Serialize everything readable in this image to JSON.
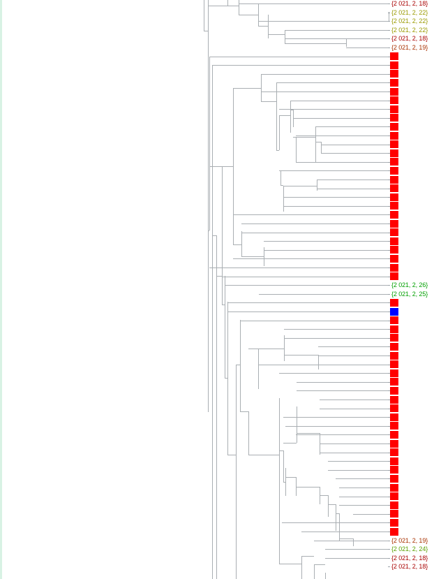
{
  "colors": {
    "line": "#a9aeb2",
    "box_red": "#ff0000",
    "box_blue": "#0000ff",
    "date_dark_red": "#a80000",
    "date_olive": "#9a9a00",
    "date_green": "#00a000",
    "date_olive_green": "#5aa000",
    "left_strip": "#d8f2e4"
  },
  "leaves": [
    {
      "kind": "label",
      "text": "{2 021, 2, 18}",
      "color": "#a80000"
    },
    {
      "kind": "label",
      "text": "{2 021, 2, 22}",
      "color": "#9a9a00"
    },
    {
      "kind": "label",
      "text": "{2 021, 2, 22}",
      "color": "#9a9a00"
    },
    {
      "kind": "label",
      "text": "{2 021, 2, 22}",
      "color": "#9a9a00"
    },
    {
      "kind": "label",
      "text": "{2 021, 2, 18}",
      "color": "#a80000"
    },
    {
      "kind": "label",
      "text": "{2 021, 2, 19}",
      "color": "#a83000"
    },
    {
      "kind": "box",
      "color": "#ff0000"
    },
    {
      "kind": "box",
      "color": "#ff0000"
    },
    {
      "kind": "box",
      "color": "#ff0000"
    },
    {
      "kind": "box",
      "color": "#ff0000"
    },
    {
      "kind": "box",
      "color": "#ff0000"
    },
    {
      "kind": "box",
      "color": "#ff0000"
    },
    {
      "kind": "box",
      "color": "#ff0000"
    },
    {
      "kind": "box",
      "color": "#ff0000"
    },
    {
      "kind": "box",
      "color": "#ff0000"
    },
    {
      "kind": "box",
      "color": "#ff0000"
    },
    {
      "kind": "box",
      "color": "#ff0000"
    },
    {
      "kind": "box",
      "color": "#ff0000"
    },
    {
      "kind": "box",
      "color": "#ff0000"
    },
    {
      "kind": "box",
      "color": "#ff0000"
    },
    {
      "kind": "box",
      "color": "#ff0000"
    },
    {
      "kind": "box",
      "color": "#ff0000"
    },
    {
      "kind": "box",
      "color": "#ff0000"
    },
    {
      "kind": "box",
      "color": "#ff0000"
    },
    {
      "kind": "box",
      "color": "#ff0000"
    },
    {
      "kind": "box",
      "color": "#ff0000"
    },
    {
      "kind": "box",
      "color": "#ff0000"
    },
    {
      "kind": "box",
      "color": "#ff0000"
    },
    {
      "kind": "box",
      "color": "#ff0000"
    },
    {
      "kind": "box",
      "color": "#ff0000"
    },
    {
      "kind": "box",
      "color": "#ff0000"
    },
    {
      "kind": "box",
      "color": "#ff0000"
    },
    {
      "kind": "label",
      "text": "{2 021, 2, 26}",
      "color": "#00a000"
    },
    {
      "kind": "label",
      "text": "{2 021, 2, 25}",
      "color": "#00a000"
    },
    {
      "kind": "box",
      "color": "#ff0000"
    },
    {
      "kind": "box",
      "color": "#0000ff"
    },
    {
      "kind": "box",
      "color": "#ff0000"
    },
    {
      "kind": "box",
      "color": "#ff0000"
    },
    {
      "kind": "box",
      "color": "#ff0000"
    },
    {
      "kind": "box",
      "color": "#ff0000"
    },
    {
      "kind": "box",
      "color": "#ff0000"
    },
    {
      "kind": "box",
      "color": "#ff0000"
    },
    {
      "kind": "box",
      "color": "#ff0000"
    },
    {
      "kind": "box",
      "color": "#ff0000"
    },
    {
      "kind": "box",
      "color": "#ff0000"
    },
    {
      "kind": "box",
      "color": "#ff0000"
    },
    {
      "kind": "box",
      "color": "#ff0000"
    },
    {
      "kind": "box",
      "color": "#ff0000"
    },
    {
      "kind": "box",
      "color": "#ff0000"
    },
    {
      "kind": "box",
      "color": "#ff0000"
    },
    {
      "kind": "box",
      "color": "#ff0000"
    },
    {
      "kind": "box",
      "color": "#ff0000"
    },
    {
      "kind": "box",
      "color": "#ff0000"
    },
    {
      "kind": "box",
      "color": "#ff0000"
    },
    {
      "kind": "box",
      "color": "#ff0000"
    },
    {
      "kind": "box",
      "color": "#ff0000"
    },
    {
      "kind": "box",
      "color": "#ff0000"
    },
    {
      "kind": "box",
      "color": "#ff0000"
    },
    {
      "kind": "box",
      "color": "#ff0000"
    },
    {
      "kind": "box",
      "color": "#ff0000"
    },
    {
      "kind": "box",
      "color": "#ff0000"
    },
    {
      "kind": "label",
      "text": "{2 021, 2, 19}",
      "color": "#a83000"
    },
    {
      "kind": "label",
      "text": "{2 021, 2, 24}",
      "color": "#5aa000"
    },
    {
      "kind": "label",
      "text": "{2 021, 2, 18}",
      "color": "#a80000"
    },
    {
      "kind": "label",
      "text": "{2 021, 2, 18}",
      "color": "#a80000"
    }
  ]
}
